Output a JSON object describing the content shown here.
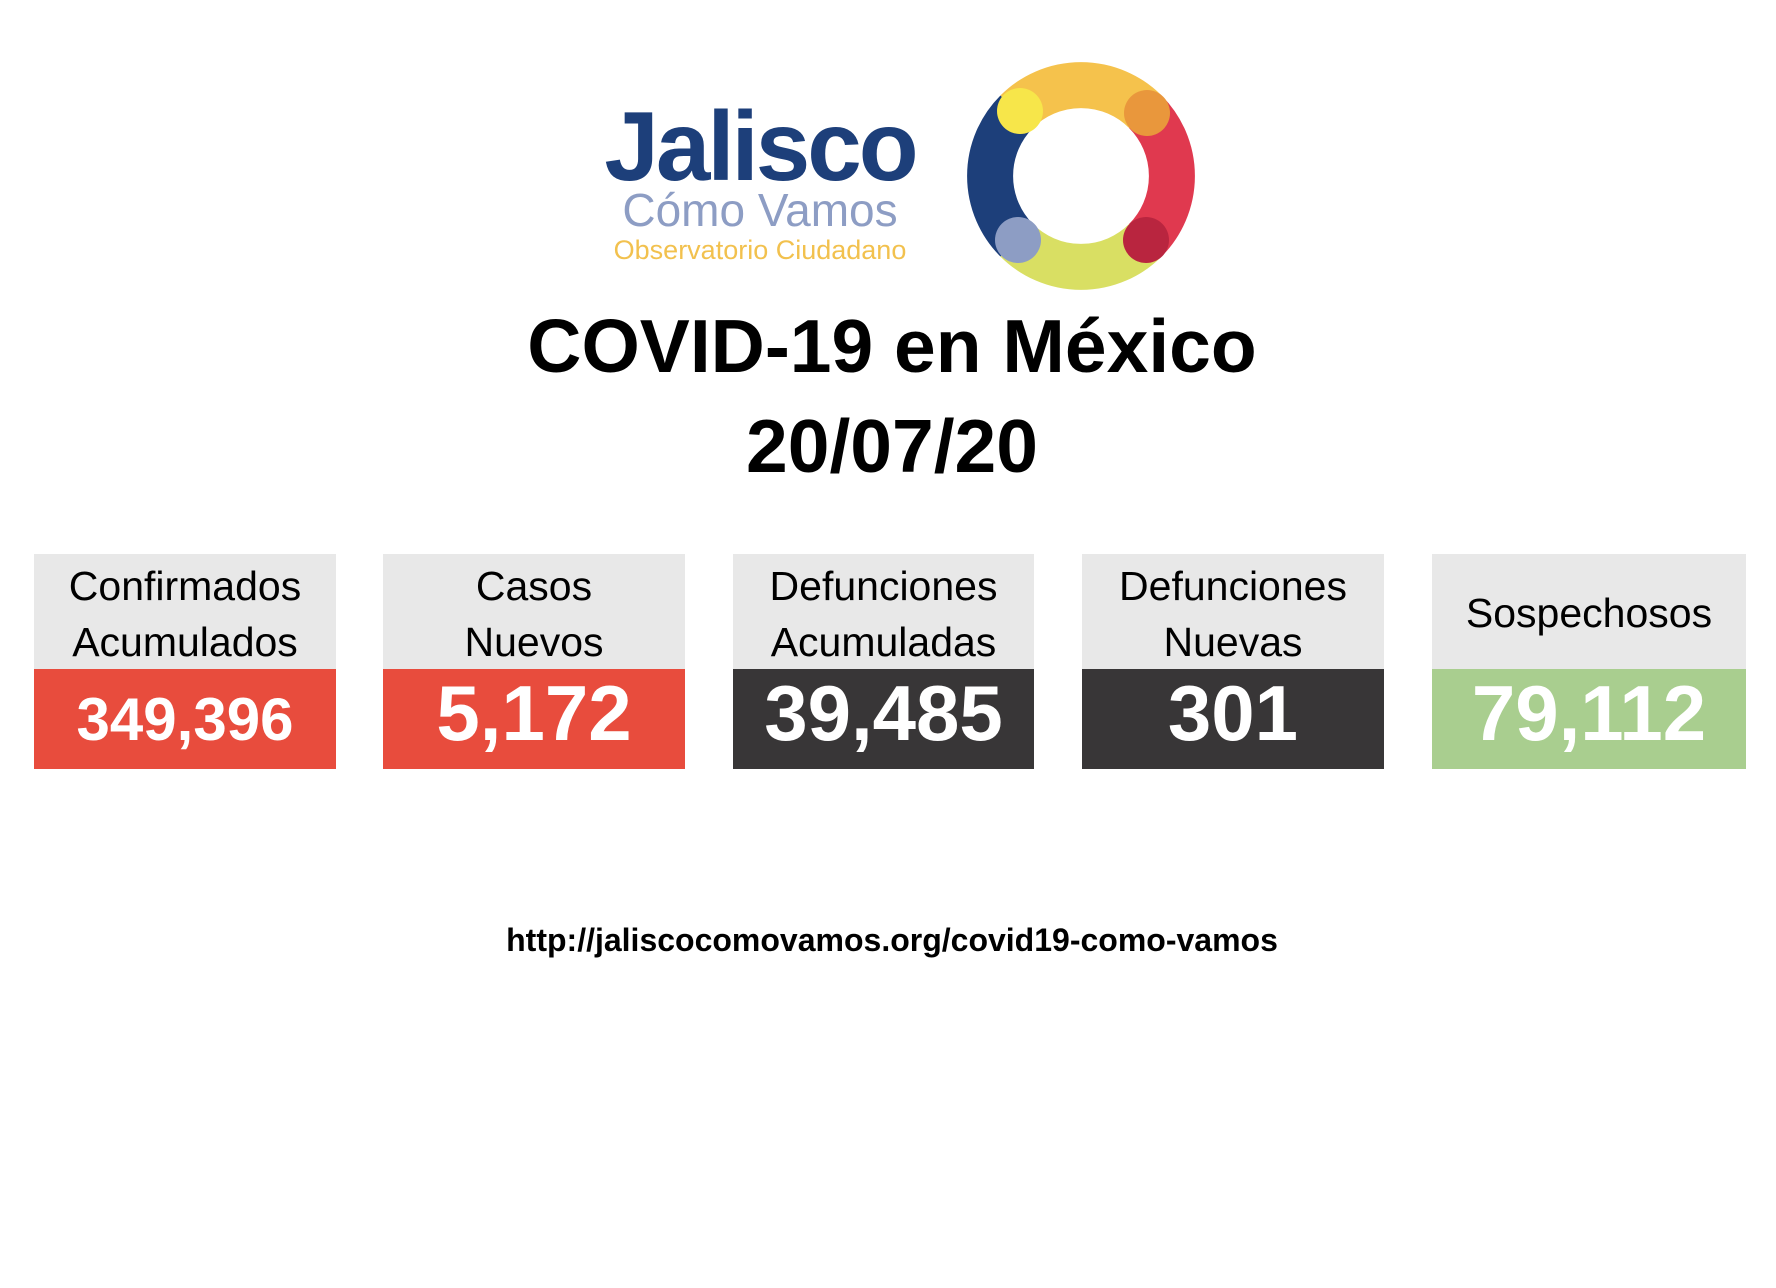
{
  "logo": {
    "name": "Jalisco",
    "subtitle": "Cómo Vamos",
    "tagline": "Observatorio Ciudadano"
  },
  "header": {
    "title": "COVID-19 en México",
    "date": "20/07/20"
  },
  "cards": [
    {
      "label": [
        "Confirmados",
        "Acumulados"
      ],
      "value": "349,396"
    },
    {
      "label": [
        "Casos",
        "Nuevos"
      ],
      "value": "5,172"
    },
    {
      "label": [
        "Defunciones",
        "Acumuladas"
      ],
      "value": "39,485"
    },
    {
      "label": [
        "Defunciones",
        "Nuevas"
      ],
      "value": "301"
    },
    {
      "label": [
        "Sospechosos"
      ],
      "value": "79,112"
    }
  ],
  "footer": {
    "url": "http://jaliscocomovamos.org/covid19-como-vamos"
  }
}
